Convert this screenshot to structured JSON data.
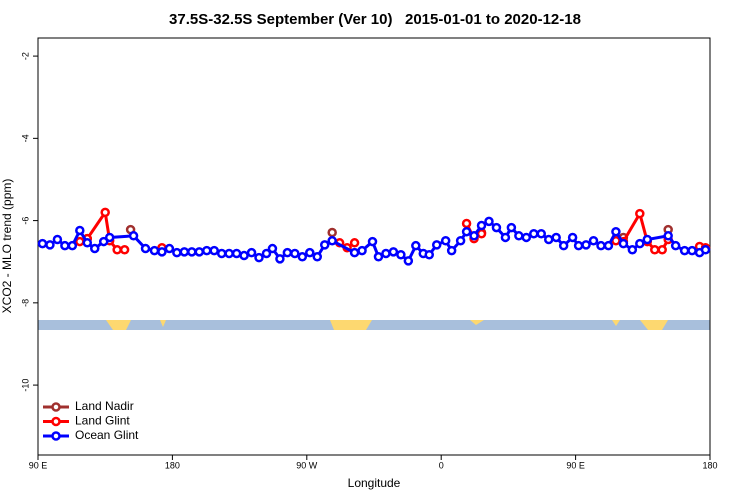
{
  "chart_data": {
    "type": "line",
    "title": "37.5S-32.5S September (Ver 10)   2015-01-01 to 2020-12-18",
    "x_label": "Longitude",
    "y_label": "XCO2 - MLO trend (ppm)",
    "xlim": [
      90,
      540
    ],
    "ylim": [
      -11.7,
      -1.56
    ],
    "xticks": [
      {
        "value": 90,
        "label": "90 E"
      },
      {
        "value": 180,
        "label": "180"
      },
      {
        "value": 270,
        "label": "90 W"
      },
      {
        "value": 360,
        "label": "0"
      },
      {
        "value": 450,
        "label": "90 E"
      },
      {
        "value": 540,
        "label": "180"
      }
    ],
    "yticks": [
      -2,
      -4,
      -6,
      -8,
      -10
    ],
    "legend": "bottom-left",
    "series": [
      {
        "name": "Land Nadir",
        "color": "#a0302e",
        "x": [
          123,
          152,
          287,
          387,
          482,
          512
        ],
        "values": [
          -6.44,
          -6.22,
          -6.29,
          -6.29,
          -6.41,
          -6.22
        ]
      },
      {
        "name": "Land Glint",
        "color": "#ff0000",
        "x": [
          118,
          123,
          135,
          138,
          143,
          148,
          173,
          292,
          297,
          302,
          377,
          382,
          387,
          477,
          482,
          493,
          498,
          503,
          508,
          512,
          533,
          537
        ],
        "values": [
          -6.51,
          -6.44,
          -5.8,
          -6.49,
          -6.71,
          -6.71,
          -6.66,
          -6.54,
          -6.66,
          -6.54,
          -6.07,
          -6.44,
          -6.32,
          -6.49,
          -6.51,
          -5.83,
          -6.51,
          -6.71,
          -6.71,
          -6.46,
          -6.63,
          -6.66
        ]
      },
      {
        "name": "Ocean Glint",
        "color": "#0000ff",
        "x": [
          93,
          98,
          103,
          108,
          113,
          118,
          123,
          128,
          134,
          138,
          154,
          162,
          168,
          173,
          178,
          183,
          188,
          193,
          198,
          203,
          208,
          213,
          218,
          223,
          228,
          233,
          238,
          243,
          247,
          252,
          257,
          262,
          267,
          272,
          277,
          282,
          287,
          302,
          307,
          314,
          318,
          323,
          328,
          333,
          338,
          343,
          348,
          352,
          357,
          363,
          367,
          373,
          377,
          382,
          387,
          392,
          397,
          403,
          407,
          412,
          417,
          422,
          427,
          432,
          437,
          442,
          448,
          452,
          457,
          462,
          467,
          472,
          477,
          482,
          488,
          493,
          498,
          512,
          517,
          523,
          528,
          533,
          537
        ],
        "values": [
          -6.56,
          -6.59,
          -6.46,
          -6.61,
          -6.61,
          -6.24,
          -6.54,
          -6.68,
          -6.51,
          -6.41,
          -6.37,
          -6.68,
          -6.73,
          -6.76,
          -6.68,
          -6.78,
          -6.76,
          -6.76,
          -6.76,
          -6.73,
          -6.73,
          -6.8,
          -6.8,
          -6.8,
          -6.85,
          -6.78,
          -6.9,
          -6.8,
          -6.68,
          -6.93,
          -6.78,
          -6.8,
          -6.88,
          -6.78,
          -6.88,
          -6.59,
          -6.49,
          -6.78,
          -6.73,
          -6.51,
          -6.88,
          -6.8,
          -6.76,
          -6.83,
          -6.98,
          -6.61,
          -6.8,
          -6.83,
          -6.59,
          -6.49,
          -6.73,
          -6.49,
          -6.27,
          -6.37,
          -6.12,
          -6.02,
          -6.17,
          -6.41,
          -6.17,
          -6.37,
          -6.41,
          -6.32,
          -6.32,
          -6.46,
          -6.41,
          -6.61,
          -6.41,
          -6.61,
          -6.59,
          -6.49,
          -6.61,
          -6.61,
          -6.27,
          -6.56,
          -6.71,
          -6.56,
          -6.46,
          -6.37,
          -6.61,
          -6.73,
          -6.73,
          -6.78,
          -6.71
        ]
      }
    ]
  }
}
